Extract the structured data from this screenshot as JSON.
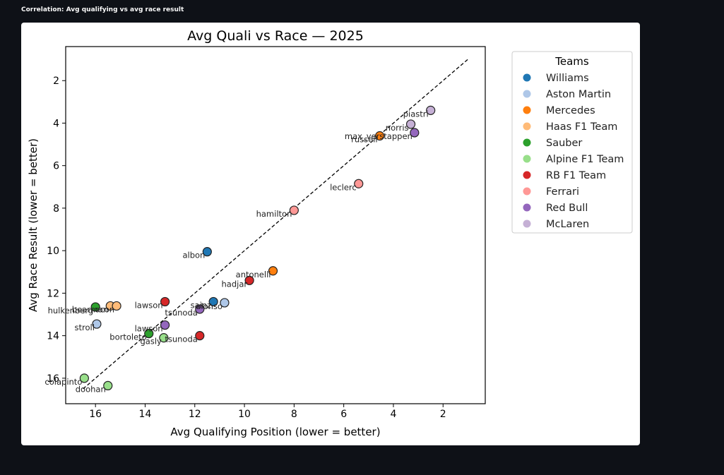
{
  "page": {
    "section_title": "Correlation: Avg qualifying vs avg race result"
  },
  "chart_data": {
    "type": "scatter",
    "title": "Avg Quali vs Race — 2025",
    "xlabel": "Avg Qualifying Position (lower = better)",
    "ylabel": "Avg Race Result (lower = better)",
    "xlim": [
      17.2,
      0.3
    ],
    "ylim": [
      17.2,
      0.4
    ],
    "x_inverted": true,
    "y_inverted": true,
    "xticks": [
      16,
      14,
      12,
      10,
      8,
      6,
      4,
      2
    ],
    "yticks": [
      2,
      4,
      6,
      8,
      10,
      12,
      14,
      16
    ],
    "grid": false,
    "legend": {
      "title": "Teams",
      "placement": "outside-right",
      "entries": [
        {
          "name": "Williams",
          "color": "#1f77b4"
        },
        {
          "name": "Aston Martin",
          "color": "#aec7e8"
        },
        {
          "name": "Mercedes",
          "color": "#ff7f0e"
        },
        {
          "name": "Haas F1 Team",
          "color": "#ffbb78"
        },
        {
          "name": "Sauber",
          "color": "#2ca02c"
        },
        {
          "name": "Alpine F1 Team",
          "color": "#98df8a"
        },
        {
          "name": "RB F1 Team",
          "color": "#d62728"
        },
        {
          "name": "Ferrari",
          "color": "#ff9896"
        },
        {
          "name": "Red Bull",
          "color": "#9467bd"
        },
        {
          "name": "McLaren",
          "color": "#c5b0d5"
        }
      ]
    },
    "reference_line": {
      "style": "dashed",
      "from": [
        16.5,
        16.5
      ],
      "to": [
        1.0,
        1.0
      ]
    },
    "points": [
      {
        "label": "piastri",
        "team": "McLaren",
        "x": 2.5,
        "y": 3.4
      },
      {
        "label": "norris",
        "team": "McLaren",
        "x": 3.3,
        "y": 4.05
      },
      {
        "label": "max_verstappen",
        "team": "Red Bull",
        "x": 3.15,
        "y": 4.45
      },
      {
        "label": "russell",
        "team": "Mercedes",
        "x": 4.55,
        "y": 4.6
      },
      {
        "label": "leclerc",
        "team": "Ferrari",
        "x": 5.4,
        "y": 6.85
      },
      {
        "label": "hamilton",
        "team": "Ferrari",
        "x": 8.0,
        "y": 8.1
      },
      {
        "label": "albon",
        "team": "Williams",
        "x": 11.5,
        "y": 10.05
      },
      {
        "label": "antonelli",
        "team": "Mercedes",
        "x": 8.85,
        "y": 10.95
      },
      {
        "label": "hadjar",
        "team": "RB F1 Team",
        "x": 9.8,
        "y": 11.4
      },
      {
        "label": "sainz",
        "team": "Williams",
        "x": 11.25,
        "y": 12.4
      },
      {
        "label": "alonso",
        "team": "Aston Martin",
        "x": 10.8,
        "y": 12.45
      },
      {
        "label": "tsunoda",
        "team": "Red Bull",
        "x": 11.8,
        "y": 12.75
      },
      {
        "label": "lawson",
        "team": "RB F1 Team",
        "x": 13.2,
        "y": 12.4
      },
      {
        "label": "lawson",
        "team": "Red Bull",
        "x": 13.2,
        "y": 13.5
      },
      {
        "label": "tsunoda",
        "team": "RB F1 Team",
        "x": 11.8,
        "y": 14.0
      },
      {
        "label": "bortoleto",
        "team": "Sauber",
        "x": 13.85,
        "y": 13.9
      },
      {
        "label": "gasly",
        "team": "Alpine F1 Team",
        "x": 13.25,
        "y": 14.1
      },
      {
        "label": "hulkenberg",
        "team": "Sauber",
        "x": 16.0,
        "y": 12.65
      },
      {
        "label": "bearman",
        "team": "Haas F1 Team",
        "x": 15.4,
        "y": 12.6
      },
      {
        "label": "ocon",
        "team": "Haas F1 Team",
        "x": 15.15,
        "y": 12.6
      },
      {
        "label": "stroll",
        "team": "Aston Martin",
        "x": 15.95,
        "y": 13.45
      },
      {
        "label": "colapinto",
        "team": "Alpine F1 Team",
        "x": 16.45,
        "y": 16.0
      },
      {
        "label": "doohan",
        "team": "Alpine F1 Team",
        "x": 15.5,
        "y": 16.35
      }
    ]
  }
}
